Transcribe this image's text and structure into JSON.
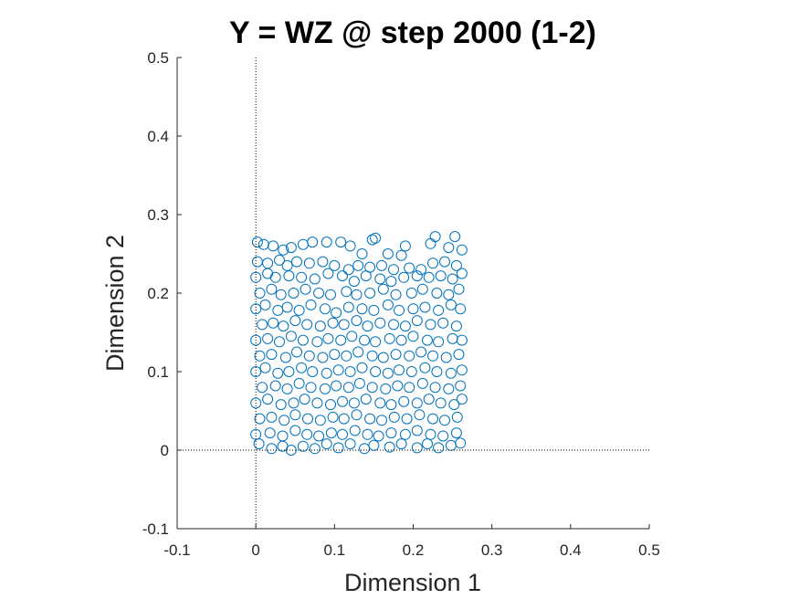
{
  "chart_data": {
    "type": "scatter",
    "title": "Y = WZ @ step 2000 (1-2)",
    "xlabel": "Dimension 1",
    "ylabel": "Dimension 2",
    "xlim": [
      -0.1,
      0.5
    ],
    "ylim": [
      -0.1,
      0.5
    ],
    "xticks": [
      "-0.1",
      "0",
      "0.1",
      "0.2",
      "0.3",
      "0.4",
      "0.5"
    ],
    "yticks": [
      "-0.1",
      "0",
      "0.1",
      "0.2",
      "0.3",
      "0.4",
      "0.5"
    ],
    "grid": false,
    "reference_lines": {
      "x": 0,
      "y": 0,
      "style": "dotted"
    },
    "marker": "open-circle",
    "color": "#0072BD",
    "series": [
      {
        "points": [
          [
            0.002,
            0.265
          ],
          [
            0.01,
            0.262
          ],
          [
            0.022,
            0.26
          ],
          [
            0.035,
            0.255
          ],
          [
            0.045,
            0.258
          ],
          [
            0.06,
            0.262
          ],
          [
            0.072,
            0.265
          ],
          [
            0.09,
            0.265
          ],
          [
            0.108,
            0.265
          ],
          [
            0.12,
            0.26
          ],
          [
            0.135,
            0.25
          ],
          [
            0.148,
            0.268
          ],
          [
            0.152,
            0.27
          ],
          [
            0.168,
            0.25
          ],
          [
            0.185,
            0.248
          ],
          [
            0.19,
            0.26
          ],
          [
            0.222,
            0.263
          ],
          [
            0.228,
            0.272
          ],
          [
            0.245,
            0.258
          ],
          [
            0.253,
            0.272
          ],
          [
            0.262,
            0.255
          ],
          [
            0.002,
            0.24
          ],
          [
            0.015,
            0.238
          ],
          [
            0.03,
            0.242
          ],
          [
            0.04,
            0.235
          ],
          [
            0.052,
            0.24
          ],
          [
            0.068,
            0.238
          ],
          [
            0.085,
            0.24
          ],
          [
            0.1,
            0.235
          ],
          [
            0.118,
            0.23
          ],
          [
            0.13,
            0.235
          ],
          [
            0.145,
            0.233
          ],
          [
            0.16,
            0.235
          ],
          [
            0.175,
            0.23
          ],
          [
            0.195,
            0.232
          ],
          [
            0.21,
            0.23
          ],
          [
            0.225,
            0.238
          ],
          [
            0.24,
            0.24
          ],
          [
            0.255,
            0.235
          ],
          [
            0.0,
            0.22
          ],
          [
            0.015,
            0.225
          ],
          [
            0.025,
            0.22
          ],
          [
            0.042,
            0.222
          ],
          [
            0.058,
            0.22
          ],
          [
            0.075,
            0.218
          ],
          [
            0.092,
            0.225
          ],
          [
            0.11,
            0.222
          ],
          [
            0.125,
            0.215
          ],
          [
            0.14,
            0.222
          ],
          [
            0.158,
            0.218
          ],
          [
            0.172,
            0.215
          ],
          [
            0.188,
            0.22
          ],
          [
            0.205,
            0.222
          ],
          [
            0.22,
            0.22
          ],
          [
            0.235,
            0.222
          ],
          [
            0.25,
            0.218
          ],
          [
            0.262,
            0.225
          ],
          [
            0.005,
            0.2
          ],
          [
            0.02,
            0.205
          ],
          [
            0.032,
            0.198
          ],
          [
            0.048,
            0.2
          ],
          [
            0.063,
            0.205
          ],
          [
            0.08,
            0.2
          ],
          [
            0.095,
            0.198
          ],
          [
            0.115,
            0.202
          ],
          [
            0.128,
            0.198
          ],
          [
            0.145,
            0.2
          ],
          [
            0.162,
            0.205
          ],
          [
            0.178,
            0.198
          ],
          [
            0.198,
            0.2
          ],
          [
            0.212,
            0.205
          ],
          [
            0.23,
            0.2
          ],
          [
            0.245,
            0.198
          ],
          [
            0.258,
            0.205
          ],
          [
            0.0,
            0.18
          ],
          [
            0.012,
            0.185
          ],
          [
            0.028,
            0.178
          ],
          [
            0.04,
            0.182
          ],
          [
            0.055,
            0.178
          ],
          [
            0.07,
            0.185
          ],
          [
            0.088,
            0.18
          ],
          [
            0.102,
            0.175
          ],
          [
            0.118,
            0.182
          ],
          [
            0.135,
            0.18
          ],
          [
            0.15,
            0.178
          ],
          [
            0.168,
            0.185
          ],
          [
            0.182,
            0.178
          ],
          [
            0.2,
            0.18
          ],
          [
            0.215,
            0.182
          ],
          [
            0.232,
            0.178
          ],
          [
            0.248,
            0.185
          ],
          [
            0.26,
            0.18
          ],
          [
            0.008,
            0.16
          ],
          [
            0.022,
            0.162
          ],
          [
            0.035,
            0.158
          ],
          [
            0.05,
            0.165
          ],
          [
            0.065,
            0.16
          ],
          [
            0.082,
            0.158
          ],
          [
            0.098,
            0.162
          ],
          [
            0.112,
            0.16
          ],
          [
            0.128,
            0.165
          ],
          [
            0.142,
            0.158
          ],
          [
            0.158,
            0.162
          ],
          [
            0.175,
            0.16
          ],
          [
            0.19,
            0.158
          ],
          [
            0.205,
            0.165
          ],
          [
            0.222,
            0.16
          ],
          [
            0.238,
            0.162
          ],
          [
            0.255,
            0.158
          ],
          [
            0.0,
            0.14
          ],
          [
            0.015,
            0.142
          ],
          [
            0.03,
            0.138
          ],
          [
            0.045,
            0.145
          ],
          [
            0.06,
            0.14
          ],
          [
            0.078,
            0.138
          ],
          [
            0.092,
            0.142
          ],
          [
            0.108,
            0.14
          ],
          [
            0.122,
            0.145
          ],
          [
            0.138,
            0.14
          ],
          [
            0.152,
            0.138
          ],
          [
            0.17,
            0.142
          ],
          [
            0.185,
            0.14
          ],
          [
            0.2,
            0.145
          ],
          [
            0.218,
            0.14
          ],
          [
            0.232,
            0.138
          ],
          [
            0.25,
            0.142
          ],
          [
            0.262,
            0.14
          ],
          [
            0.005,
            0.12
          ],
          [
            0.02,
            0.122
          ],
          [
            0.038,
            0.118
          ],
          [
            0.052,
            0.125
          ],
          [
            0.068,
            0.12
          ],
          [
            0.085,
            0.118
          ],
          [
            0.1,
            0.122
          ],
          [
            0.115,
            0.12
          ],
          [
            0.13,
            0.125
          ],
          [
            0.148,
            0.12
          ],
          [
            0.162,
            0.118
          ],
          [
            0.178,
            0.122
          ],
          [
            0.195,
            0.12
          ],
          [
            0.21,
            0.125
          ],
          [
            0.225,
            0.12
          ],
          [
            0.242,
            0.118
          ],
          [
            0.258,
            0.122
          ],
          [
            0.0,
            0.1
          ],
          [
            0.012,
            0.105
          ],
          [
            0.028,
            0.098
          ],
          [
            0.042,
            0.1
          ],
          [
            0.058,
            0.105
          ],
          [
            0.072,
            0.1
          ],
          [
            0.09,
            0.098
          ],
          [
            0.105,
            0.102
          ],
          [
            0.12,
            0.1
          ],
          [
            0.135,
            0.105
          ],
          [
            0.152,
            0.1
          ],
          [
            0.168,
            0.098
          ],
          [
            0.182,
            0.102
          ],
          [
            0.198,
            0.1
          ],
          [
            0.215,
            0.105
          ],
          [
            0.23,
            0.1
          ],
          [
            0.248,
            0.098
          ],
          [
            0.262,
            0.102
          ],
          [
            0.008,
            0.08
          ],
          [
            0.025,
            0.082
          ],
          [
            0.04,
            0.078
          ],
          [
            0.055,
            0.085
          ],
          [
            0.07,
            0.08
          ],
          [
            0.088,
            0.078
          ],
          [
            0.102,
            0.082
          ],
          [
            0.118,
            0.08
          ],
          [
            0.132,
            0.085
          ],
          [
            0.148,
            0.08
          ],
          [
            0.165,
            0.078
          ],
          [
            0.18,
            0.082
          ],
          [
            0.195,
            0.08
          ],
          [
            0.212,
            0.085
          ],
          [
            0.228,
            0.08
          ],
          [
            0.245,
            0.078
          ],
          [
            0.26,
            0.082
          ],
          [
            0.0,
            0.06
          ],
          [
            0.015,
            0.065
          ],
          [
            0.032,
            0.058
          ],
          [
            0.048,
            0.06
          ],
          [
            0.062,
            0.065
          ],
          [
            0.078,
            0.06
          ],
          [
            0.095,
            0.058
          ],
          [
            0.11,
            0.062
          ],
          [
            0.125,
            0.06
          ],
          [
            0.14,
            0.065
          ],
          [
            0.158,
            0.06
          ],
          [
            0.172,
            0.058
          ],
          [
            0.188,
            0.062
          ],
          [
            0.205,
            0.06
          ],
          [
            0.22,
            0.065
          ],
          [
            0.235,
            0.06
          ],
          [
            0.252,
            0.058
          ],
          [
            0.262,
            0.065
          ],
          [
            0.005,
            0.04
          ],
          [
            0.02,
            0.042
          ],
          [
            0.036,
            0.038
          ],
          [
            0.05,
            0.045
          ],
          [
            0.066,
            0.04
          ],
          [
            0.082,
            0.038
          ],
          [
            0.098,
            0.042
          ],
          [
            0.112,
            0.04
          ],
          [
            0.128,
            0.045
          ],
          [
            0.145,
            0.04
          ],
          [
            0.16,
            0.038
          ],
          [
            0.176,
            0.042
          ],
          [
            0.192,
            0.04
          ],
          [
            0.208,
            0.045
          ],
          [
            0.225,
            0.04
          ],
          [
            0.24,
            0.038
          ],
          [
            0.256,
            0.042
          ],
          [
            0.0,
            0.02
          ],
          [
            0.018,
            0.022
          ],
          [
            0.034,
            0.018
          ],
          [
            0.05,
            0.025
          ],
          [
            0.065,
            0.02
          ],
          [
            0.08,
            0.018
          ],
          [
            0.096,
            0.022
          ],
          [
            0.11,
            0.02
          ],
          [
            0.126,
            0.025
          ],
          [
            0.142,
            0.02
          ],
          [
            0.156,
            0.018
          ],
          [
            0.172,
            0.022
          ],
          [
            0.19,
            0.02
          ],
          [
            0.205,
            0.025
          ],
          [
            0.222,
            0.02
          ],
          [
            0.238,
            0.018
          ],
          [
            0.255,
            0.022
          ],
          [
            0.004,
            0.008
          ],
          [
            0.02,
            0.002
          ],
          [
            0.034,
            0.005
          ],
          [
            0.045,
            0.0
          ],
          [
            0.06,
            0.005
          ],
          [
            0.075,
            0.002
          ],
          [
            0.09,
            0.008
          ],
          [
            0.105,
            0.003
          ],
          [
            0.12,
            0.008
          ],
          [
            0.138,
            0.002
          ],
          [
            0.15,
            0.006
          ],
          [
            0.17,
            0.004
          ],
          [
            0.185,
            0.008
          ],
          [
            0.205,
            0.003
          ],
          [
            0.218,
            0.008
          ],
          [
            0.232,
            0.003
          ],
          [
            0.248,
            0.006
          ],
          [
            0.26,
            0.009
          ]
        ]
      }
    ]
  }
}
